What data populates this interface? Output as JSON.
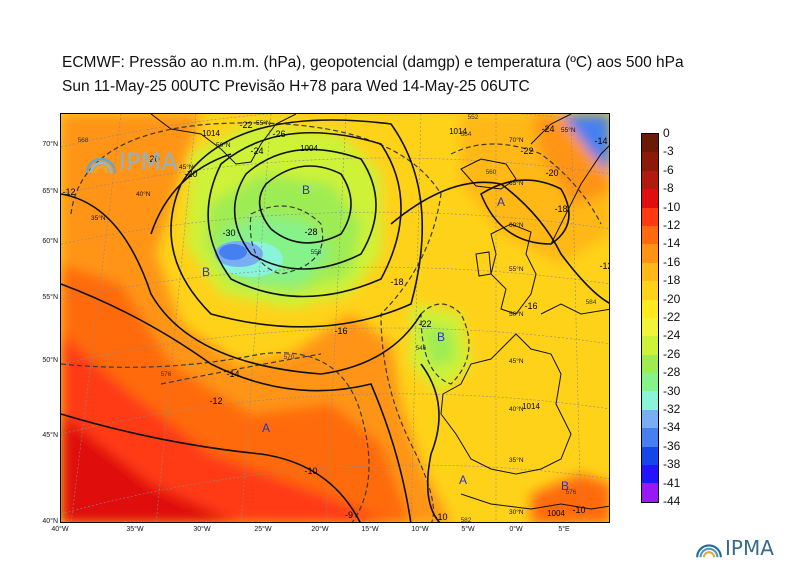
{
  "title": {
    "line1": "ECMWF:  Pressão ao n.m.m. (hPa), geopotencial (damgp) e temperatura (ºC) aos 500 hPa",
    "line2": "Sun 11-May-25 00UTC Previsão H+78 para Wed 14-May-25 06UTC"
  },
  "logo": {
    "text": "IPMA"
  },
  "colorbar": {
    "labels": [
      "0",
      "-3",
      "-6",
      "-8",
      "-10",
      "-12",
      "-14",
      "-16",
      "-18",
      "-20",
      "-22",
      "-24",
      "-26",
      "-28",
      "-30",
      "-32",
      "-34",
      "-36",
      "-38",
      "-41",
      "-44"
    ],
    "colors": [
      "#6b1a06",
      "#8b1a0a",
      "#b01a10",
      "#e00e0e",
      "#ff3a12",
      "#ff6a10",
      "#ff9414",
      "#ffb818",
      "#ffd21a",
      "#ffea20",
      "#f2f43a",
      "#cdf238",
      "#9eec52",
      "#86f28a",
      "#8af4d8",
      "#7aaef4",
      "#4680f0",
      "#1446e8",
      "#2214ff",
      "#9a18f6",
      "#ea1af0"
    ]
  },
  "map": {
    "lat_labels": [
      "70°N",
      "65°N",
      "60°N",
      "55°N",
      "50°N",
      "45°N",
      "40°N"
    ],
    "lon_labels": [
      "40°W",
      "35°W",
      "30°W",
      "25°W",
      "20°W",
      "15°W",
      "10°W",
      "5°W",
      "0°W",
      "5°E"
    ],
    "grid_labels": [
      "55°N",
      "50°N",
      "45°N",
      "40°N",
      "35°N",
      "70°N",
      "65°N",
      "60°N",
      "55°N",
      "50°N",
      "45°N",
      "40°N",
      "35°N",
      "30°N",
      "55°N"
    ],
    "pressure_centers": [
      {
        "label": "B",
        "color": "#3030c0"
      },
      {
        "label": "B",
        "color": "#3030c0"
      },
      {
        "label": "B",
        "color": "#3030c0"
      },
      {
        "label": "A",
        "color": "#3030c0"
      },
      {
        "label": "A",
        "color": "#3030c0"
      },
      {
        "label": "A",
        "color": "#3030c0"
      },
      {
        "label": "B",
        "color": "#3030c0"
      }
    ],
    "isobar_labels": [
      "1004",
      "1014",
      "1014",
      "1004",
      "1014"
    ],
    "geopotential_labels": [
      "570",
      "552",
      "564",
      "576",
      "558",
      "582",
      "560",
      "576",
      "568",
      "546",
      "584"
    ],
    "temperature_labels": [
      "-30",
      "-28",
      "-26",
      "-24",
      "-22",
      "-20",
      "-18",
      "-16",
      "-14",
      "-12",
      "-12",
      "-10",
      "-9",
      "-22",
      "-10",
      "-24",
      "-22",
      "-20",
      "-18",
      "-16",
      "-14",
      "-12",
      "-20",
      "-10"
    ]
  }
}
